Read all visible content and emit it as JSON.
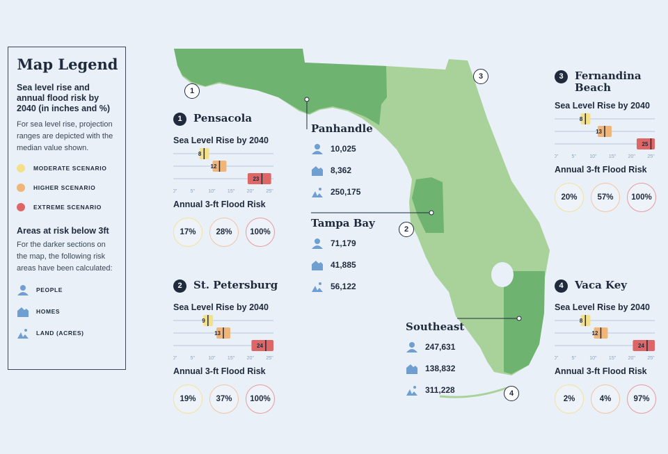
{
  "legend": {
    "title": "Map Legend",
    "subtitle": "Sea level rise and annual flood risk by 2040 (in inches and %)",
    "note": "For sea level rise, projection ranges are depicted with the median value shown.",
    "scenarios": [
      {
        "label": "MODERATE SCENARIO",
        "color": "#f3e088"
      },
      {
        "label": "HIGHER SCENARIO",
        "color": "#efb57a"
      },
      {
        "label": "EXTREME SCENARIO",
        "color": "#dd6666"
      }
    ],
    "areas_title": "Areas at risk below 3ft",
    "areas_note": "For the darker sections on the map, the following risk areas have been calculated:",
    "icons": [
      {
        "label": "PEOPLE",
        "icon": "people-icon"
      },
      {
        "label": "HOMES",
        "icon": "homes-icon"
      },
      {
        "label": "LAND (ACRES)",
        "icon": "land-icon"
      }
    ]
  },
  "colors": {
    "map_light": "#a9d29b",
    "map_dark": "#6fb371",
    "icon_blue": "#6f9fd1"
  },
  "regions": {
    "panhandle": {
      "name": "Panhandle",
      "people": "10,025",
      "homes": "8,362",
      "land": "250,175"
    },
    "tampa": {
      "name": "Tampa Bay",
      "people": "71,179",
      "homes": "41,885",
      "land": "56,122"
    },
    "southeast": {
      "name": "Southeast",
      "people": "247,631",
      "homes": "138,832",
      "land": "311,228"
    }
  },
  "cities": {
    "pensacola": {
      "num": "1",
      "name": "Pensacola",
      "slr_title": "Sea Level Rise by 2040",
      "slr": [
        8,
        12,
        23
      ],
      "flood_title": "Annual 3-ft Flood Risk",
      "flood": [
        "17%",
        "28%",
        "100%"
      ]
    },
    "stpete": {
      "num": "2",
      "name": "St. Petersburg",
      "slr_title": "Sea Level Rise by 2040",
      "slr": [
        9,
        13,
        24
      ],
      "flood_title": "Annual 3-ft Flood Risk",
      "flood": [
        "19%",
        "37%",
        "100%"
      ]
    },
    "fernandina": {
      "num": "3",
      "name": "Fernandina Beach",
      "slr_title": "Sea Level Rise by 2040",
      "slr": [
        8,
        13,
        25
      ],
      "flood_title": "Annual 3-ft Flood Risk",
      "flood": [
        "20%",
        "57%",
        "100%"
      ]
    },
    "vaca": {
      "num": "4",
      "name": "Vaca Key",
      "slr_title": "Sea Level Rise by 2040",
      "slr": [
        8,
        12,
        24
      ],
      "flood_title": "Annual 3-ft Flood Risk",
      "flood": [
        "2%",
        "4%",
        "97%"
      ]
    }
  },
  "axis_ticks": [
    "0\"",
    "5\"",
    "10\"",
    "15\"",
    "20\"",
    "25\""
  ],
  "pins": [
    "1",
    "2",
    "3",
    "4"
  ]
}
